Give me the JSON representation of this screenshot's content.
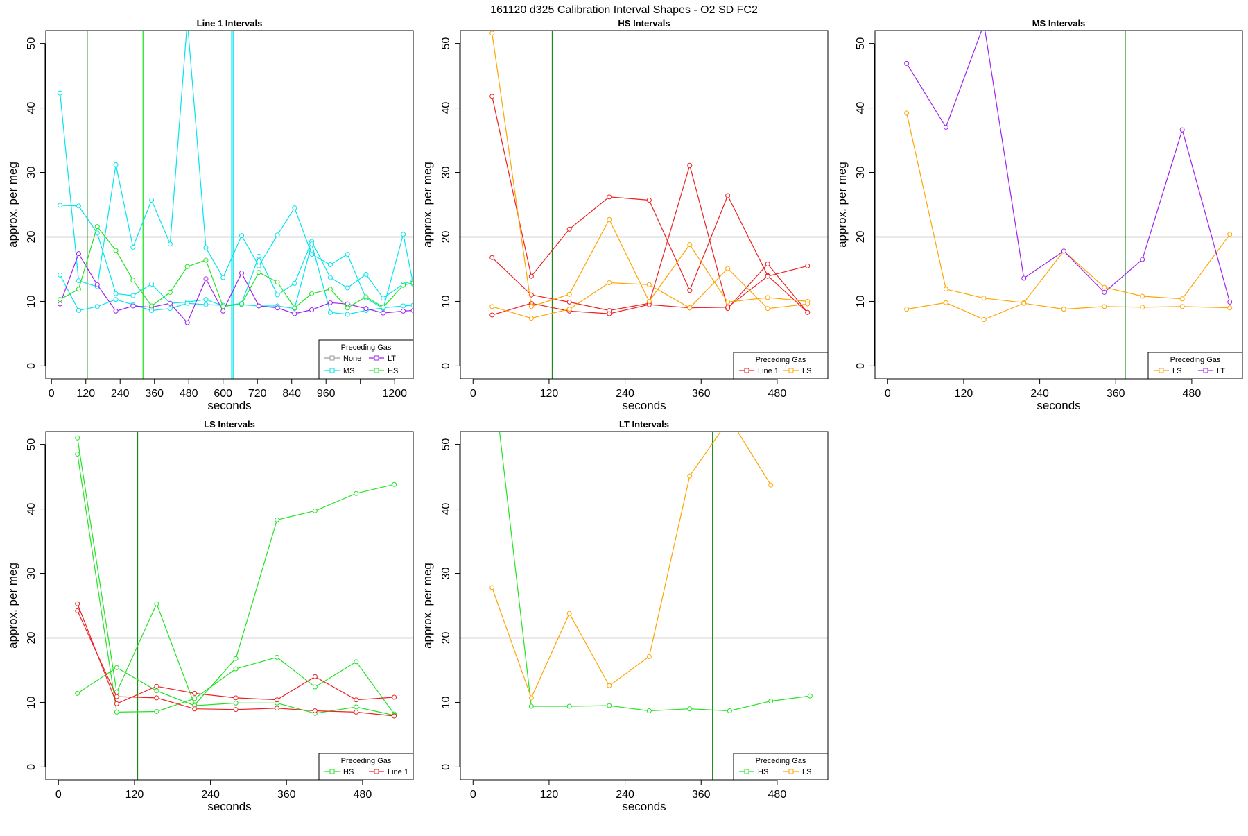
{
  "figure": {
    "title": "161120   d325   Calibration Interval Shapes - O2 SD FC2"
  },
  "colors": {
    "None": "#9e9e9e",
    "MS": "#00e5ee",
    "LT": "#a020f0",
    "HS": "#22e322",
    "Line 1": "#ee2020",
    "LS": "#ffa500",
    "vline": "#1a8a1a",
    "hline": "#555555"
  },
  "chart_data": [
    {
      "type": "line",
      "title": "Line 1 Intervals",
      "xlabel": "seconds",
      "ylabel": "approx. per meg",
      "xlim": [
        -20,
        1265
      ],
      "ylim": [
        -2,
        52
      ],
      "xticks": [
        0,
        120,
        240,
        360,
        480,
        600,
        720,
        840,
        960,
        1200
      ],
      "xtick_labels": [
        "0",
        "120",
        "240",
        "360",
        "480",
        "600",
        "720",
        "840",
        "960",
        "1200"
      ],
      "xticks_unlabeled": [
        1080
      ],
      "yticks": [
        0,
        10,
        20,
        30,
        40,
        50
      ],
      "hlines": [
        20
      ],
      "vlines": [
        {
          "x": 125,
          "color": "#1a8a1a"
        },
        {
          "x": 320,
          "color": "#22e322"
        },
        {
          "x": 630,
          "color": "#00e5ee"
        },
        {
          "x": 635,
          "color": "#00e5ee"
        }
      ],
      "legend": {
        "title": "Preceding Gas",
        "position": "bottom-right",
        "columns": 2,
        "entries": [
          "None",
          "LT",
          "MS",
          "HS"
        ]
      },
      "series": [
        {
          "name": "MS",
          "x": [
            30,
            95,
            160,
            225,
            285,
            350,
            415,
            475,
            540,
            600,
            665,
            725,
            790,
            850,
            910,
            975,
            1035,
            1100,
            1160,
            1230,
            1265
          ],
          "y": [
            42.3,
            13.2,
            12.3,
            31.2,
            18.4,
            25.7,
            18.9,
            53.5,
            18.3,
            13.7,
            20.2,
            15.5,
            20.3,
            24.5,
            17.3,
            15.7,
            17.3,
            10.5,
            8.9,
            20.4,
            12.7
          ]
        },
        {
          "name": "MS",
          "x": [
            30,
            95,
            160,
            225,
            285,
            350,
            415,
            475,
            540,
            600,
            665,
            725,
            790,
            850,
            910,
            975,
            1035,
            1100,
            1160,
            1230,
            1265
          ],
          "y": [
            24.9,
            24.8,
            20.6,
            11.2,
            10.9,
            12.7,
            9.7,
            9.9,
            10.3,
            9.3,
            9.7,
            17.0,
            11.0,
            12.8,
            19.3,
            13.7,
            12.1,
            14.2,
            10.5,
            12.7,
            13.2
          ]
        },
        {
          "name": "MS",
          "x": [
            30,
            95,
            160,
            225,
            285,
            350,
            415,
            475,
            540,
            600,
            665,
            725,
            790,
            850,
            910,
            975,
            1035,
            1100,
            1160,
            1230,
            1265
          ],
          "y": [
            14.1,
            8.6,
            9.2,
            10.3,
            9.5,
            8.6,
            8.9,
            9.7,
            9.5,
            9.4,
            9.5,
            9.3,
            9.3,
            8.9,
            18.9,
            8.3,
            8.0,
            8.6,
            9.0,
            9.3,
            9.4
          ]
        },
        {
          "name": "LT",
          "x": [
            30,
            95,
            160,
            225,
            285,
            350,
            415,
            475,
            540,
            600,
            665,
            725,
            790,
            850,
            910,
            975,
            1035,
            1100,
            1160,
            1230,
            1265
          ],
          "y": [
            9.6,
            17.4,
            12.6,
            8.5,
            9.3,
            9.1,
            9.7,
            6.7,
            13.5,
            8.5,
            14.4,
            9.3,
            9.0,
            8.1,
            8.7,
            9.8,
            9.6,
            8.9,
            8.2,
            8.5,
            8.6
          ]
        },
        {
          "name": "HS",
          "x": [
            30,
            95,
            160,
            225,
            285,
            350,
            415,
            475,
            540,
            600,
            665,
            725,
            790,
            850,
            910,
            975,
            1035,
            1100,
            1160,
            1230,
            1265
          ],
          "y": [
            10.3,
            11.9,
            21.6,
            17.9,
            13.3,
            9.3,
            11.4,
            15.4,
            16.4,
            9.2,
            9.6,
            14.5,
            13.0,
            9.0,
            11.2,
            11.9,
            9.0,
            10.7,
            9.1,
            12.5,
            12.9
          ]
        }
      ]
    },
    {
      "type": "line",
      "title": "HS Intervals",
      "xlabel": "seconds",
      "ylabel": "approx. per meg",
      "xlim": [
        -20,
        560
      ],
      "ylim": [
        -2,
        52
      ],
      "xticks": [
        0,
        120,
        240,
        360,
        480
      ],
      "xtick_labels": [
        "0",
        "120",
        "240",
        "360",
        "480"
      ],
      "xticks_unlabeled": [],
      "yticks": [
        0,
        10,
        20,
        30,
        40,
        50
      ],
      "hlines": [
        20
      ],
      "vlines": [
        {
          "x": 125,
          "color": "#1a8a1a"
        }
      ],
      "legend": {
        "title": "Preceding Gas",
        "position": "bottom-right",
        "columns": 2,
        "entries": [
          "Line 1",
          "LS"
        ]
      },
      "series": [
        {
          "name": "Line 1",
          "x": [
            30,
            92,
            152,
            215,
            278,
            342,
            402,
            465,
            528
          ],
          "y": [
            41.8,
            13.9,
            21.2,
            26.2,
            25.7,
            11.7,
            26.4,
            14.0,
            8.3
          ]
        },
        {
          "name": "Line 1",
          "x": [
            30,
            92,
            152,
            215,
            278,
            342,
            402,
            465,
            528
          ],
          "y": [
            16.8,
            11.0,
            9.9,
            8.6,
            9.7,
            31.1,
            8.9,
            15.8,
            8.3
          ]
        },
        {
          "name": "Line 1",
          "x": [
            30,
            92,
            152,
            215,
            278,
            342,
            402,
            465,
            528
          ],
          "y": [
            7.9,
            9.7,
            8.5,
            8.1,
            9.5,
            9.0,
            9.1,
            13.9,
            15.5
          ]
        },
        {
          "name": "LS",
          "x": [
            30,
            92,
            152,
            215,
            278,
            342,
            402,
            465,
            528
          ],
          "y": [
            51.6,
            9.2,
            11.1,
            22.7,
            10.0,
            18.8,
            9.9,
            10.6,
            10.0
          ]
        },
        {
          "name": "LS",
          "x": [
            30,
            92,
            152,
            215,
            278,
            342,
            402,
            465,
            528
          ],
          "y": [
            9.2,
            7.4,
            8.8,
            12.9,
            12.6,
            9.0,
            15.1,
            8.9,
            9.6
          ]
        }
      ]
    },
    {
      "type": "line",
      "title": "MS Intervals",
      "xlabel": "seconds",
      "ylabel": "approx. per meg",
      "xlim": [
        -20,
        560
      ],
      "ylim": [
        -2,
        52
      ],
      "xticks": [
        0,
        120,
        240,
        360,
        480
      ],
      "xtick_labels": [
        "0",
        "120",
        "240",
        "360",
        "480"
      ],
      "xticks_unlabeled": [],
      "yticks": [
        0,
        10,
        20,
        30,
        40,
        50
      ],
      "hlines": [
        20
      ],
      "vlines": [
        {
          "x": 375,
          "color": "#1a8a1a"
        }
      ],
      "legend": {
        "title": "Preceding Gas",
        "position": "bottom-right",
        "columns": 2,
        "entries": [
          "LS",
          "LT"
        ]
      },
      "series": [
        {
          "name": "LS",
          "x": [
            30,
            92,
            152,
            215,
            278,
            342,
            402,
            465,
            540
          ],
          "y": [
            39.2,
            11.9,
            10.5,
            9.8,
            17.8,
            12.2,
            10.8,
            10.4,
            20.4
          ]
        },
        {
          "name": "LS",
          "x": [
            30,
            92,
            152,
            215,
            278,
            342,
            402,
            465,
            540
          ],
          "y": [
            8.8,
            9.8,
            7.2,
            9.7,
            8.8,
            9.2,
            9.1,
            9.2,
            9.0
          ]
        },
        {
          "name": "LT",
          "x": [
            30,
            92,
            152,
            215,
            278,
            342,
            402,
            465,
            540
          ],
          "y": [
            46.9,
            37.0,
            53.0,
            13.6,
            17.8,
            11.4,
            16.5,
            36.6,
            9.9
          ]
        }
      ]
    },
    {
      "type": "line",
      "title": "LS Intervals",
      "xlabel": "seconds",
      "ylabel": "approx. per meg",
      "xlim": [
        -20,
        560
      ],
      "ylim": [
        -2,
        52
      ],
      "xticks": [
        0,
        120,
        240,
        360,
        480
      ],
      "xtick_labels": [
        "0",
        "120",
        "240",
        "360",
        "480"
      ],
      "xticks_unlabeled": [],
      "yticks": [
        0,
        10,
        20,
        30,
        40,
        50
      ],
      "hlines": [
        20
      ],
      "vlines": [
        {
          "x": 125,
          "color": "#1a8a1a"
        }
      ],
      "legend": {
        "title": "Preceding Gas",
        "position": "bottom-right",
        "columns": 2,
        "entries": [
          "HS",
          "Line 1"
        ]
      },
      "series": [
        {
          "name": "HS",
          "x": [
            30,
            92,
            155,
            215,
            280,
            345,
            405,
            470,
            530
          ],
          "y": [
            51.0,
            11.6,
            25.3,
            9.6,
            16.8,
            38.3,
            39.7,
            42.4,
            43.8
          ]
        },
        {
          "name": "HS",
          "x": [
            30,
            92,
            155,
            215,
            280,
            345,
            405,
            470,
            530
          ],
          "y": [
            48.5,
            8.5,
            8.6,
            10.6,
            15.2,
            17.0,
            12.4,
            16.3,
            8.2
          ]
        },
        {
          "name": "HS",
          "x": [
            30,
            92,
            155,
            215,
            280,
            345,
            405,
            470,
            530
          ],
          "y": [
            11.4,
            15.4,
            11.8,
            9.5,
            9.9,
            9.9,
            8.3,
            9.3,
            8.0
          ]
        },
        {
          "name": "Line 1",
          "x": [
            30,
            92,
            155,
            215,
            280,
            345,
            405,
            470,
            530
          ],
          "y": [
            25.3,
            9.8,
            12.5,
            11.4,
            10.7,
            10.4,
            14.0,
            10.4,
            10.8
          ]
        },
        {
          "name": "Line 1",
          "x": [
            30,
            92,
            155,
            215,
            280,
            345,
            405,
            470,
            530
          ],
          "y": [
            24.2,
            10.9,
            10.7,
            9.0,
            8.9,
            9.1,
            8.7,
            8.5,
            7.9
          ]
        }
      ]
    },
    {
      "type": "line",
      "title": "LT Intervals",
      "xlabel": "seconds",
      "ylabel": "approx. per meg",
      "xlim": [
        -20,
        560
      ],
      "ylim": [
        -2,
        52
      ],
      "xticks": [
        0,
        120,
        240,
        360,
        480
      ],
      "xtick_labels": [
        "0",
        "120",
        "240",
        "360",
        "480"
      ],
      "xticks_unlabeled": [],
      "yticks": [
        0,
        10,
        20,
        30,
        40,
        50
      ],
      "hlines": [
        20
      ],
      "vlines": [
        {
          "x": 378,
          "color": "#1a8a1a"
        }
      ],
      "legend": {
        "title": "Preceding Gas",
        "position": "bottom-right",
        "columns": 2,
        "entries": [
          "HS",
          "LS"
        ]
      },
      "series": [
        {
          "name": "HS",
          "x": [
            30,
            92,
            152,
            215,
            278,
            342,
            405,
            470,
            532
          ],
          "y": [
            62.0,
            9.4,
            9.4,
            9.5,
            8.7,
            9.0,
            8.7,
            10.2,
            11.0
          ]
        },
        {
          "name": "LS",
          "x": [
            30,
            92,
            152,
            215,
            278,
            342,
            405,
            470
          ],
          "y": [
            27.8,
            10.7,
            23.8,
            12.6,
            17.1,
            45.1,
            54.0,
            43.7
          ]
        }
      ]
    }
  ]
}
